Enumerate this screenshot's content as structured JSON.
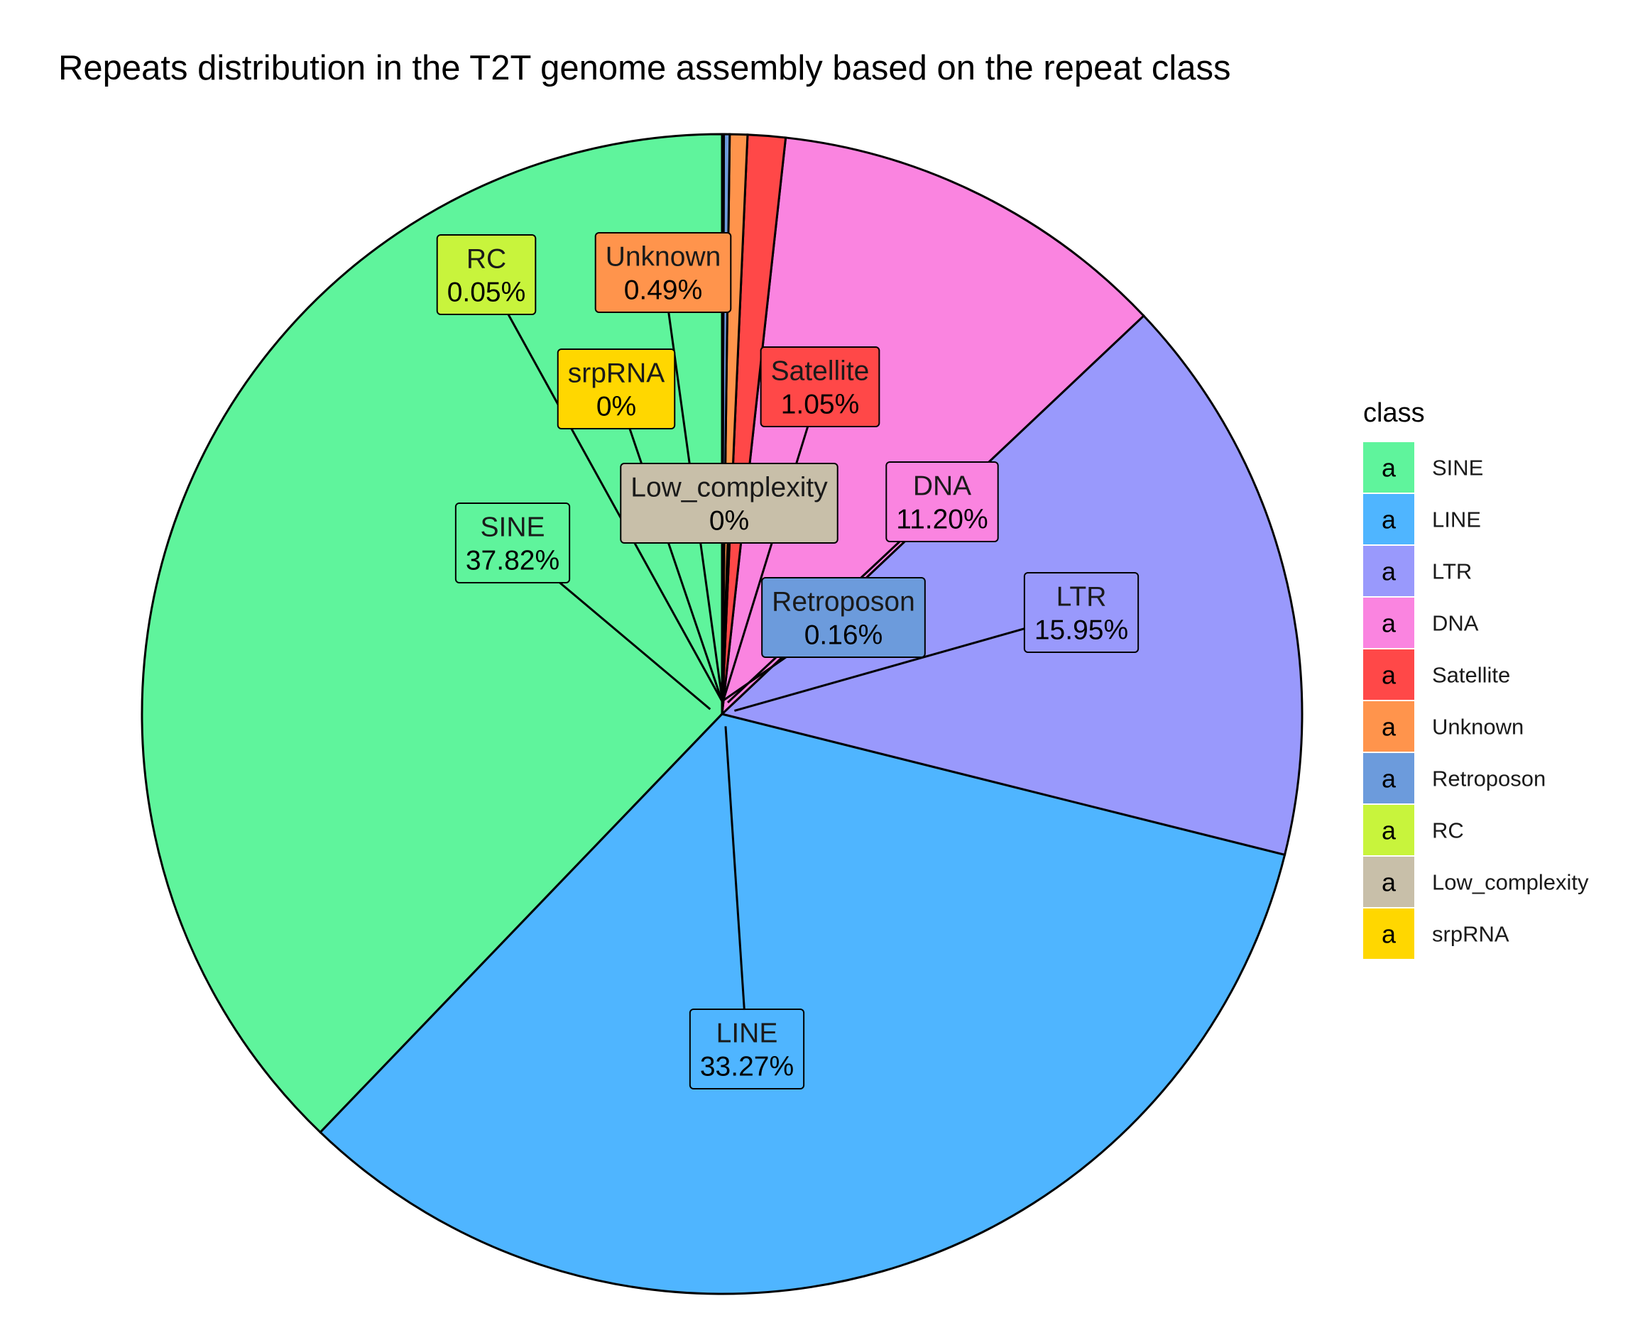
{
  "chart_data": {
    "type": "pie",
    "title": "Repeats distribution in the T2T genome assembly based on the repeat class",
    "legend_title": "class",
    "legend_key_glyph": "a",
    "legend_position": "right",
    "slices": [
      {
        "name": "SINE",
        "value": 37.82,
        "label": "37.82%",
        "color": "#5FF49C"
      },
      {
        "name": "LINE",
        "value": 33.27,
        "label": "33.27%",
        "color": "#4FB5FF"
      },
      {
        "name": "LTR",
        "value": 15.95,
        "label": "15.95%",
        "color": "#9999FC"
      },
      {
        "name": "DNA",
        "value": 11.2,
        "label": "11.20%",
        "color": "#FA84E0"
      },
      {
        "name": "Satellite",
        "value": 1.05,
        "label": "1.05%",
        "color": "#FF4848"
      },
      {
        "name": "Unknown",
        "value": 0.49,
        "label": "0.49%",
        "color": "#FF944C"
      },
      {
        "name": "Retroposon",
        "value": 0.16,
        "label": "0.16%",
        "color": "#6C9BDC"
      },
      {
        "name": "RC",
        "value": 0.05,
        "label": "0.05%",
        "color": "#C8F43C"
      },
      {
        "name": "Low_complexity",
        "value": 0.0,
        "label": "0%",
        "color": "#C8BFA9"
      },
      {
        "name": "srpRNA",
        "value": 0.0,
        "label": "0%",
        "color": "#FFD700"
      }
    ]
  }
}
